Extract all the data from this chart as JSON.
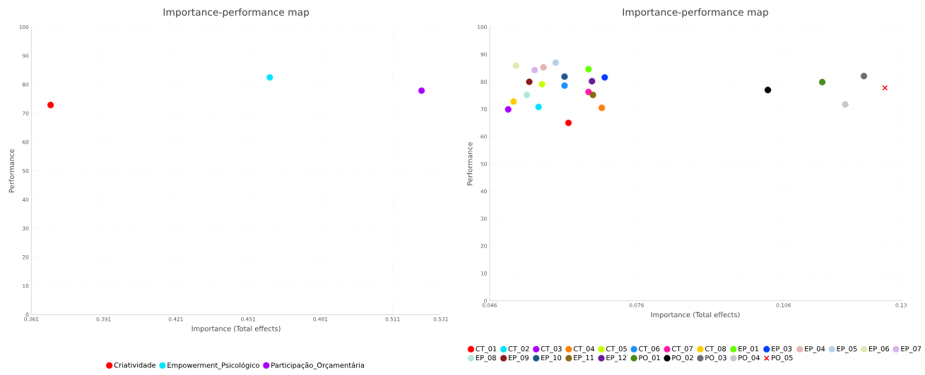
{
  "chart_data": [
    {
      "type": "scatter",
      "title": "Importance-performance map",
      "xlabel": "Importance (Total effects)",
      "ylabel": "Performance",
      "xlim": [
        0.361,
        0.531
      ],
      "xticks": [
        0.361,
        0.391,
        0.421,
        0.451,
        0.481,
        0.511,
        0.531
      ],
      "ylim": [
        0,
        100
      ],
      "yticks": [
        0,
        10,
        20,
        30,
        40,
        50,
        60,
        70,
        80,
        90,
        100
      ],
      "grid": true,
      "legend": "bottom",
      "marker": "circle",
      "series": [
        {
          "name": "Criatividade",
          "color": "#ff0000",
          "x": [
            0.369
          ],
          "values": [
            72.9
          ]
        },
        {
          "name": "Empowerment_Psicológico",
          "color": "#00e5ff",
          "x": [
            0.46
          ],
          "values": [
            82.5
          ]
        },
        {
          "name": "Participação_Orçamentária",
          "color": "#aa00ff",
          "x": [
            0.523
          ],
          "values": [
            77.9
          ]
        }
      ]
    },
    {
      "type": "scatter",
      "title": "Importance-performance map",
      "xlabel": "Importance (Total effects)",
      "ylabel": "Performance",
      "xlim": [
        0.046,
        0.13
      ],
      "xticks": [
        0.046,
        0.076,
        0.106,
        0.13
      ],
      "ylim": [
        0,
        100
      ],
      "yticks": [
        0,
        10,
        20,
        30,
        40,
        50,
        60,
        70,
        80,
        90,
        100
      ],
      "grid": true,
      "legend": "bottom",
      "marker": "circle",
      "series": [
        {
          "name": "CT_01",
          "color": "#ff0000",
          "x": [
            0.0621
          ],
          "values": [
            65.0
          ]
        },
        {
          "name": "CT_02",
          "color": "#00e5ff",
          "x": [
            0.056
          ],
          "values": [
            70.8
          ]
        },
        {
          "name": "CT_03",
          "color": "#aa00ff",
          "x": [
            0.0498
          ],
          "values": [
            69.9
          ]
        },
        {
          "name": "CT_04",
          "color": "#ff7f0e",
          "x": [
            0.0689
          ],
          "values": [
            70.5
          ]
        },
        {
          "name": "CT_05",
          "color": "#c6ff00",
          "x": [
            0.0567
          ],
          "values": [
            79.1
          ]
        },
        {
          "name": "CT_06",
          "color": "#1e90ff",
          "x": [
            0.0613
          ],
          "values": [
            78.6
          ]
        },
        {
          "name": "CT_07",
          "color": "#ff1aa8",
          "x": [
            0.0662
          ],
          "values": [
            76.3
          ]
        },
        {
          "name": "CT_08",
          "color": "#ffcc00",
          "x": [
            0.0509
          ],
          "values": [
            72.8
          ]
        },
        {
          "name": "EP_01",
          "color": "#66ff00",
          "x": [
            0.0662
          ],
          "values": [
            84.6
          ]
        },
        {
          "name": "EP_03",
          "color": "#0040ff",
          "x": [
            0.0695
          ],
          "values": [
            81.6
          ]
        },
        {
          "name": "EP_04",
          "color": "#e8b4b4",
          "x": [
            0.057
          ],
          "values": [
            85.3
          ]
        },
        {
          "name": "EP_05",
          "color": "#b4d2ec",
          "x": [
            0.0595
          ],
          "values": [
            87.0
          ]
        },
        {
          "name": "EP_06",
          "color": "#e6e6b4",
          "x": [
            0.0514
          ],
          "values": [
            85.9
          ]
        },
        {
          "name": "EP_07",
          "color": "#d8b4ec",
          "x": [
            0.0552
          ],
          "values": [
            84.3
          ]
        },
        {
          "name": "EP_08",
          "color": "#b4e6dc",
          "x": [
            0.0536
          ],
          "values": [
            75.2
          ]
        },
        {
          "name": "EP_09",
          "color": "#8b1a1a",
          "x": [
            0.0541
          ],
          "values": [
            80.0
          ]
        },
        {
          "name": "EP_10",
          "color": "#1f5a8c",
          "x": [
            0.0613
          ],
          "values": [
            81.9
          ]
        },
        {
          "name": "EP_11",
          "color": "#8b6914",
          "x": [
            0.0671
          ],
          "values": [
            75.2
          ]
        },
        {
          "name": "EP_12",
          "color": "#6a1b9a",
          "x": [
            0.0669
          ],
          "values": [
            80.2
          ]
        },
        {
          "name": "PO_01",
          "color": "#4a8c1c",
          "x": [
            0.1139
          ],
          "values": [
            79.9
          ]
        },
        {
          "name": "PO_02",
          "color": "#000000",
          "x": [
            0.1028
          ],
          "values": [
            77.0
          ]
        },
        {
          "name": "PO_03",
          "color": "#6e6e6e",
          "x": [
            0.1224
          ],
          "values": [
            82.1
          ]
        },
        {
          "name": "PO_04",
          "color": "#c8c8c8",
          "x": [
            0.1186
          ],
          "values": [
            71.7
          ]
        },
        {
          "name": "PO_05",
          "color": "#ff0000",
          "x": [
            0.1267
          ],
          "values": [
            77.8
          ],
          "marker": "cross"
        }
      ]
    }
  ]
}
